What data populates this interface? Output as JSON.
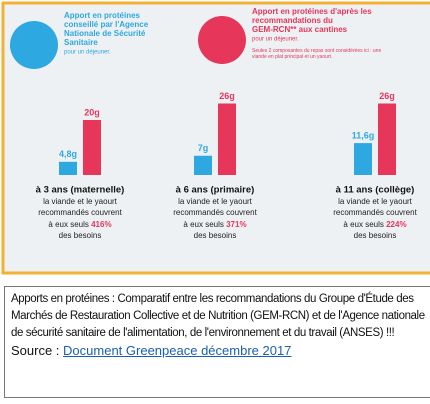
{
  "chart_data": {
    "type": "bar",
    "categories": [
      "à 3 ans (maternelle)",
      "à 6 ans (primaire)",
      "à 11 ans (collège)"
    ],
    "series": [
      {
        "name": "Apport en protéines conseillé par l'Agence Nationale de Sécurité Sanitaire",
        "note": "pour un déjeuner.",
        "color": "#2ea8e0",
        "values": [
          4.8,
          7,
          11.6
        ],
        "value_labels": [
          "4,8g",
          "7g",
          "11,6g"
        ]
      },
      {
        "name": "Apport en protéines d'après les recommandations du GEM-RCN** aux cantines",
        "note": "pour un déjeuner.",
        "color": "#e6365a",
        "values": [
          20,
          26,
          26
        ],
        "value_labels": [
          "20g",
          "26g",
          "26g"
        ]
      }
    ],
    "footnote": "Seules 2 composantes du repas sont considérées ici : une viande en plat principal et un yaourt.",
    "group_text": {
      "line1": "la viande et le yaourt",
      "line2": "recommandés couvrent",
      "line3": "à eux seuls",
      "line4": "des besoins"
    },
    "coverage": {
      "values": [
        416,
        371,
        224
      ],
      "value_labels": [
        "416%",
        "371%",
        "224%"
      ]
    }
  },
  "caption": {
    "text": "Apports en protéines : Comparatif entre les recommandations du Groupe d'Étude des Marchés de Restauration Collective et de Nutrition (GEM-RCN) et de l'Agence nationale de sécurité sanitaire de l'alimentation, de l'environnement et du travail (ANSES) !!!",
    "source_label": "Source :",
    "link": "Document Greenpeace décembre 2017"
  }
}
